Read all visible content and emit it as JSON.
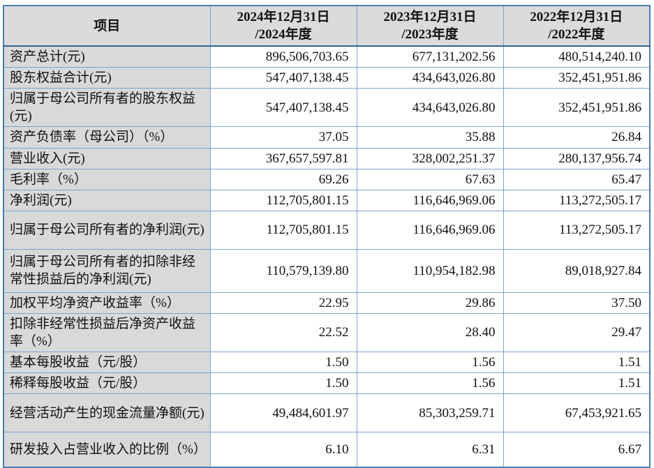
{
  "table": {
    "item_header": "项目",
    "columns": [
      {
        "line1": "2024年12月31日",
        "line2": "/2024年度"
      },
      {
        "line1": "2023年12月31日",
        "line2": "/2023年度"
      },
      {
        "line1": "2022年12月31日",
        "line2": "/2022年度"
      }
    ],
    "rows": [
      {
        "label": "资产总计(元)",
        "values": [
          "896,506,703.65",
          "677,131,202.56",
          "480,514,240.10"
        ]
      },
      {
        "label": "股东权益合计(元)",
        "values": [
          "547,407,138.45",
          "434,643,026.80",
          "352,451,951.86"
        ]
      },
      {
        "label": "归属于母公司所有者的股东权益(元)",
        "values": [
          "547,407,138.45",
          "434,643,026.80",
          "352,451,951.86"
        ]
      },
      {
        "label": "资产负债率（母公司）（%）",
        "values": [
          "37.05",
          "35.88",
          "26.84"
        ]
      },
      {
        "label": "营业收入(元)",
        "values": [
          "367,657,597.81",
          "328,002,251.37",
          "280,137,956.74"
        ]
      },
      {
        "label": "毛利率（%）",
        "values": [
          "69.26",
          "67.63",
          "65.47"
        ]
      },
      {
        "label": "净利润(元)",
        "values": [
          "112,705,801.15",
          "116,646,969.06",
          "113,272,505.17"
        ]
      },
      {
        "label": "归属于母公司所有者的净利润(元)",
        "values": [
          "112,705,801.15",
          "116,646,969.06",
          "113,272,505.17"
        ]
      },
      {
        "label": "归属于母公司所有者的扣除非经常性损益后的净利润(元)",
        "values": [
          "110,579,139.80",
          "110,954,182.98",
          "89,018,927.84"
        ]
      },
      {
        "label": "加权平均净资产收益率（%）",
        "values": [
          "22.95",
          "29.86",
          "37.50"
        ]
      },
      {
        "label": "扣除非经常性损益后净资产收益率（%）",
        "values": [
          "22.52",
          "28.40",
          "29.47"
        ]
      },
      {
        "label": "基本每股收益（元/股）",
        "values": [
          "1.50",
          "1.56",
          "1.51"
        ]
      },
      {
        "label": "稀释每股收益（元/股）",
        "values": [
          "1.50",
          "1.56",
          "1.51"
        ]
      },
      {
        "label": "经营活动产生的现金流量净额(元)",
        "values": [
          "49,484,601.97",
          "85,303,259.71",
          "67,453,921.65"
        ]
      },
      {
        "label": "研发投入占营业收入的比例（%）",
        "values": [
          "6.10",
          "6.31",
          "6.67"
        ]
      }
    ]
  },
  "colors": {
    "header_bg": "#dbdbdb",
    "label_bg": "#d9d9d9",
    "border_outer": "#4a7dbb",
    "border_inner": "#7ea3cf",
    "header_rule": "#33608f"
  }
}
